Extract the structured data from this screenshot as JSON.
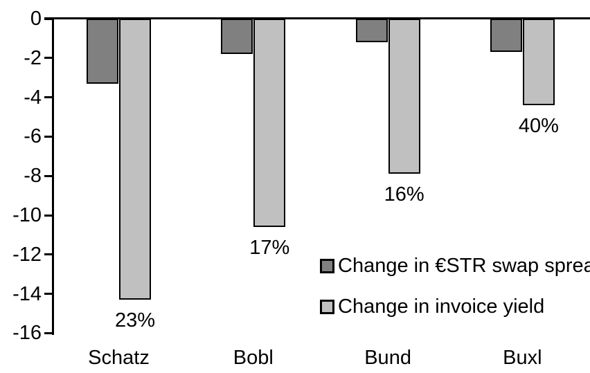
{
  "chart_data": {
    "type": "bar",
    "title": "",
    "xlabel": "",
    "ylabel": "",
    "categories": [
      "Schatz",
      "Bobl",
      "Bund",
      "Buxl"
    ],
    "series": [
      {
        "name": "Change in €STR swap spread",
        "color": "#808080",
        "values": [
          -3.3,
          -1.8,
          -1.2,
          -1.7
        ]
      },
      {
        "name": "Change in invoice yield",
        "color": "#c0c0c0",
        "values": [
          -14.3,
          -10.6,
          -7.9,
          -4.4
        ]
      }
    ],
    "bar_value_labels": {
      "series_name": "Change in invoice yield",
      "values": [
        "23%",
        "17%",
        "16%",
        "40%"
      ]
    },
    "ylim": [
      -16,
      0
    ],
    "yticks": [
      0,
      -2,
      -4,
      -6,
      -8,
      -10,
      -12,
      -14,
      -16
    ],
    "grid": false,
    "legend_position": "inside-center-right",
    "bar_outline_color": "#000000",
    "axis_color": "#000000",
    "text_color": "#000000",
    "background_color": "#ffffff"
  }
}
